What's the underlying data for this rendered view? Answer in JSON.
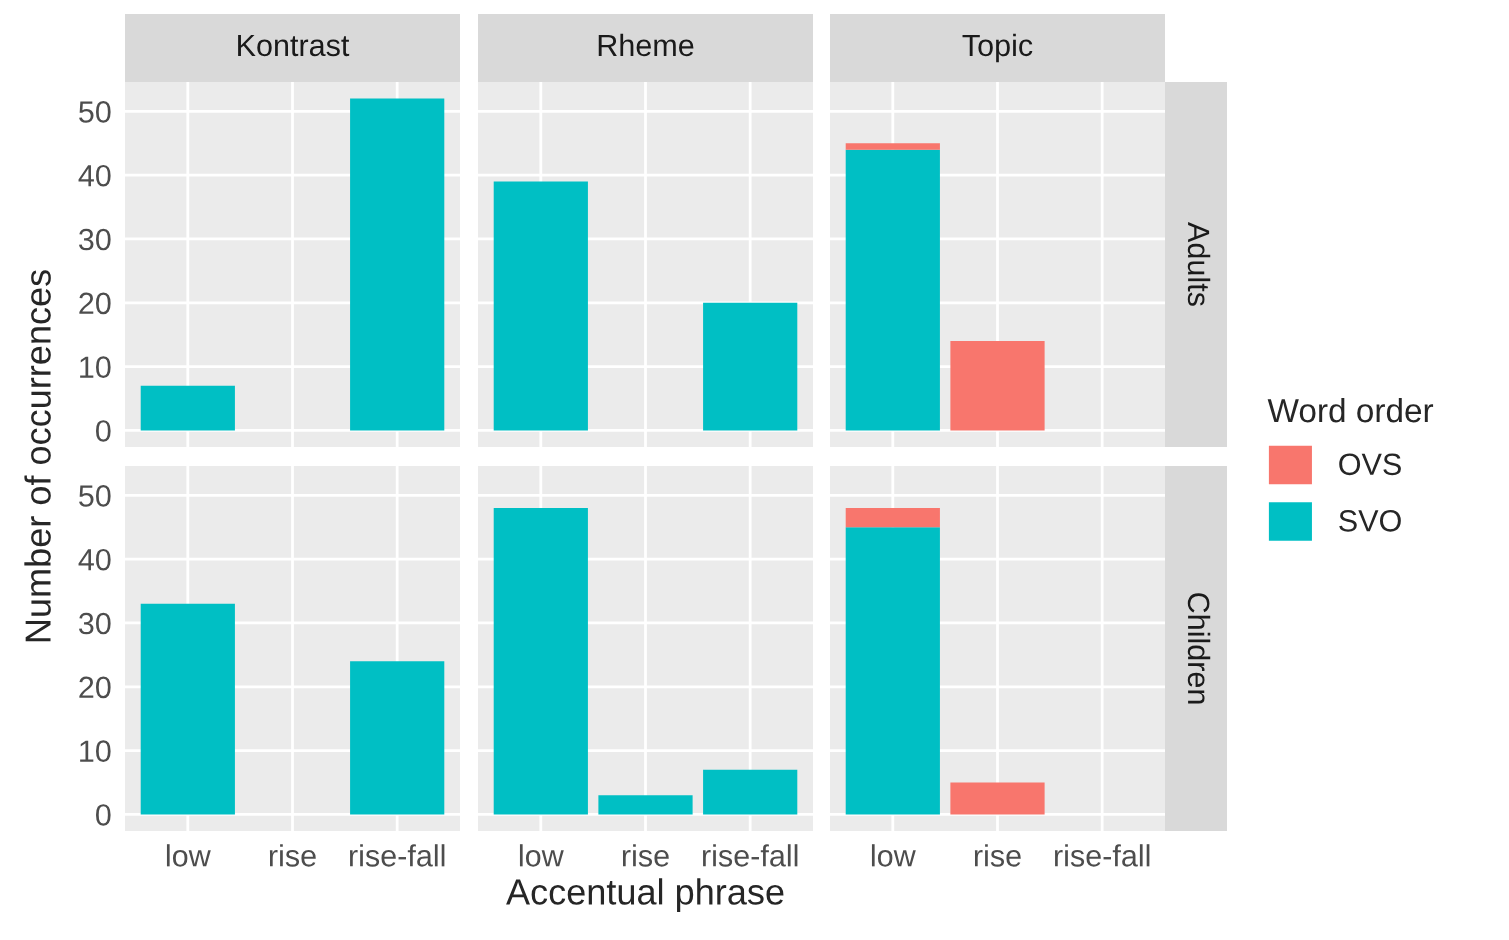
{
  "chart_data": [
    {
      "type": "bar",
      "stacked": true,
      "title": "Kontrast",
      "ylabel": "Number of occurrences",
      "legend": "right",
      "legend_title": "Word order",
      "grid": true,
      "tick_labels": "y",
      "categories": [
        "low",
        "rise",
        "rise-fall"
      ],
      "ylim": [
        -2.6,
        54.6
      ],
      "yticks": [
        0,
        10,
        20,
        30,
        40,
        50
      ],
      "series": [
        {
          "name": "SVO",
          "color": "#00bfc4",
          "values": [
            7,
            0,
            52
          ]
        },
        {
          "name": "OVS",
          "color": "#f8766d",
          "values": [
            0,
            0,
            0
          ]
        }
      ]
    },
    {
      "type": "bar",
      "stacked": true,
      "title": "Rheme",
      "grid": true,
      "tick_labels": false,
      "categories": [
        "low",
        "rise",
        "rise-fall"
      ],
      "ylim": [
        -2.6,
        54.6
      ],
      "yticks": [
        0,
        10,
        20,
        30,
        40,
        50
      ],
      "series": [
        {
          "color": "#00bfc4",
          "values": [
            39,
            0,
            20
          ]
        },
        {
          "color": "#f8766d",
          "values": [
            0,
            0,
            0
          ]
        }
      ]
    },
    {
      "type": "bar",
      "stacked": true,
      "title": "Topic",
      "annotations": [
        "Adults"
      ],
      "grid": true,
      "tick_labels": false,
      "categories": [
        "low",
        "rise",
        "rise-fall"
      ],
      "ylim": [
        -2.6,
        54.6
      ],
      "yticks": [
        0,
        10,
        20,
        30,
        40,
        50
      ],
      "series": [
        {
          "color": "#00bfc4",
          "values": [
            44,
            0,
            0
          ]
        },
        {
          "color": "#f8766d",
          "values": [
            1,
            14,
            0
          ]
        }
      ]
    },
    {
      "type": "bar",
      "stacked": true,
      "grid": true,
      "categories": [
        "low",
        "rise",
        "rise-fall"
      ],
      "ylim": [
        -2.6,
        54.6
      ],
      "yticks": [
        0,
        10,
        20,
        30,
        40,
        50
      ],
      "series": [
        {
          "color": "#00bfc4",
          "values": [
            33,
            0,
            24
          ]
        },
        {
          "color": "#f8766d",
          "values": [
            0,
            0,
            0
          ]
        }
      ]
    },
    {
      "type": "bar",
      "stacked": true,
      "xlabel": "Accentual phrase",
      "grid": true,
      "tick_labels": "x",
      "categories": [
        "low",
        "rise",
        "rise-fall"
      ],
      "ylim": [
        -2.6,
        54.6
      ],
      "yticks": [
        0,
        10,
        20,
        30,
        40,
        50
      ],
      "series": [
        {
          "color": "#00bfc4",
          "values": [
            48,
            3,
            7
          ]
        },
        {
          "color": "#f8766d",
          "values": [
            0,
            0,
            0
          ]
        }
      ]
    },
    {
      "type": "bar",
      "stacked": true,
      "annotations": [
        "Children"
      ],
      "grid": true,
      "tick_labels": "x",
      "categories": [
        "low",
        "rise",
        "rise-fall"
      ],
      "ylim": [
        -2.6,
        54.6
      ],
      "yticks": [
        0,
        10,
        20,
        30,
        40,
        50
      ],
      "series": [
        {
          "color": "#00bfc4",
          "values": [
            45,
            0,
            0
          ]
        },
        {
          "color": "#f8766d",
          "values": [
            3,
            5,
            0
          ]
        }
      ]
    }
  ]
}
